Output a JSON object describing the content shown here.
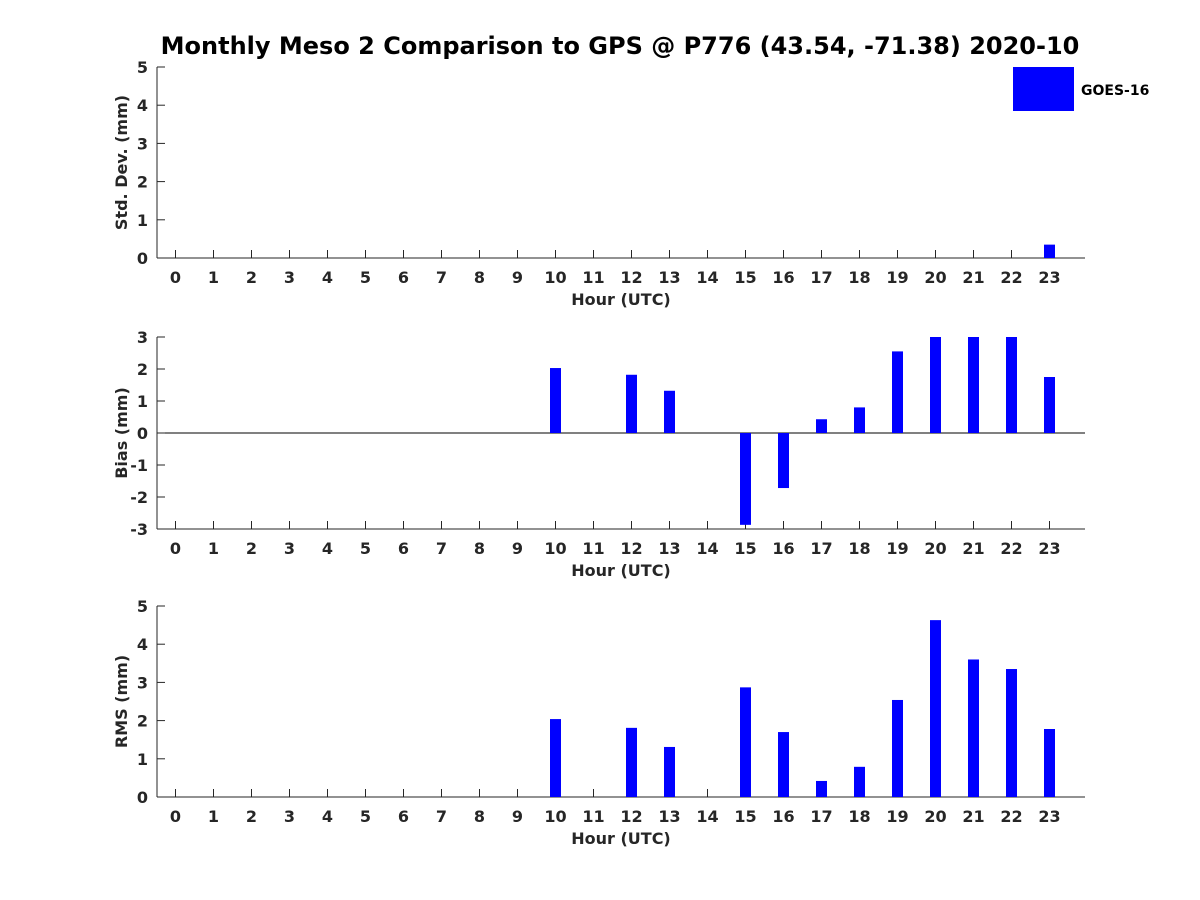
{
  "title": "Monthly Meso 2 Comparison to GPS @ P776 (43.54, -71.38) 2020-10",
  "legend": {
    "label": "GOES-16",
    "color": "#0000FF",
    "placement": "top-right"
  },
  "chart_data": [
    {
      "type": "bar",
      "name": "std-dev",
      "categories": [
        "0",
        "1",
        "2",
        "3",
        "4",
        "5",
        "6",
        "7",
        "8",
        "9",
        "10",
        "11",
        "12",
        "13",
        "14",
        "15",
        "16",
        "17",
        "18",
        "19",
        "20",
        "21",
        "22",
        "23"
      ],
      "values": [
        null,
        null,
        null,
        null,
        null,
        null,
        null,
        null,
        null,
        null,
        null,
        null,
        null,
        null,
        null,
        null,
        null,
        null,
        null,
        null,
        null,
        null,
        null,
        0.35
      ],
      "xlabel": "Hour (UTC)",
      "ylabel": "Std. Dev. (mm)",
      "ylim": [
        0,
        5
      ],
      "yticks": [
        "0",
        "1",
        "2",
        "3",
        "4",
        "5"
      ],
      "series_name": "GOES-16"
    },
    {
      "type": "bar",
      "name": "bias",
      "categories": [
        "0",
        "1",
        "2",
        "3",
        "4",
        "5",
        "6",
        "7",
        "8",
        "9",
        "10",
        "11",
        "12",
        "13",
        "14",
        "15",
        "16",
        "17",
        "18",
        "19",
        "20",
        "21",
        "22",
        "23"
      ],
      "values": [
        null,
        null,
        null,
        null,
        null,
        null,
        null,
        null,
        null,
        null,
        2.03,
        null,
        1.82,
        1.32,
        null,
        -2.87,
        -1.72,
        0.43,
        0.8,
        2.55,
        3.0,
        3.0,
        3.0,
        1.75
      ],
      "xlabel": "Hour (UTC)",
      "ylabel": "Bias (mm)",
      "ylim": [
        -3,
        3
      ],
      "yticks": [
        "-3",
        "-2",
        "-1",
        "0",
        "1",
        "2",
        "3"
      ],
      "zero_line": true,
      "series_name": "GOES-16"
    },
    {
      "type": "bar",
      "name": "rms",
      "categories": [
        "0",
        "1",
        "2",
        "3",
        "4",
        "5",
        "6",
        "7",
        "8",
        "9",
        "10",
        "11",
        "12",
        "13",
        "14",
        "15",
        "16",
        "17",
        "18",
        "19",
        "20",
        "21",
        "22",
        "23"
      ],
      "values": [
        null,
        null,
        null,
        null,
        null,
        null,
        null,
        null,
        null,
        null,
        2.04,
        null,
        1.81,
        1.31,
        null,
        2.87,
        1.7,
        0.42,
        0.79,
        2.54,
        4.63,
        3.6,
        3.35,
        1.78
      ],
      "xlabel": "Hour (UTC)",
      "ylabel": "RMS (mm)",
      "ylim": [
        0,
        5
      ],
      "yticks": [
        "0",
        "1",
        "2",
        "3",
        "4",
        "5"
      ],
      "series_name": "GOES-16"
    }
  ]
}
